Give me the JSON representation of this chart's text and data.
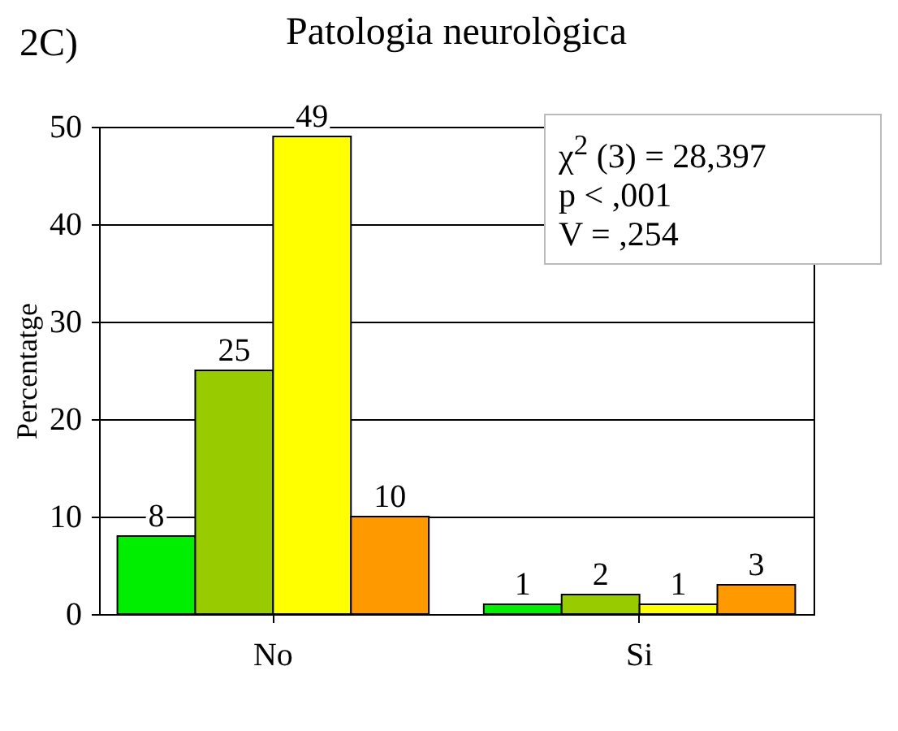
{
  "chart_data": {
    "type": "bar",
    "title": "Patologia neurològica",
    "ylabel": "Percentatge",
    "categories": [
      "No",
      "Si"
    ],
    "series": [
      {
        "color": "#00ee00",
        "values": [
          8,
          1
        ]
      },
      {
        "color": "#99cc00",
        "values": [
          25,
          2
        ]
      },
      {
        "color": "#ffff00",
        "values": [
          49,
          1
        ]
      },
      {
        "color": "#ff9900",
        "values": [
          10,
          3
        ]
      }
    ],
    "ylim": [
      0,
      50
    ],
    "yticks": [
      0,
      10,
      20,
      30,
      40,
      50
    ],
    "grid": "y",
    "legend": false,
    "data_labels": true,
    "annotations": [
      "2C)",
      "χ$^{2}$ (3) = 28,397",
      "p < ,001",
      "V = ,254"
    ]
  }
}
